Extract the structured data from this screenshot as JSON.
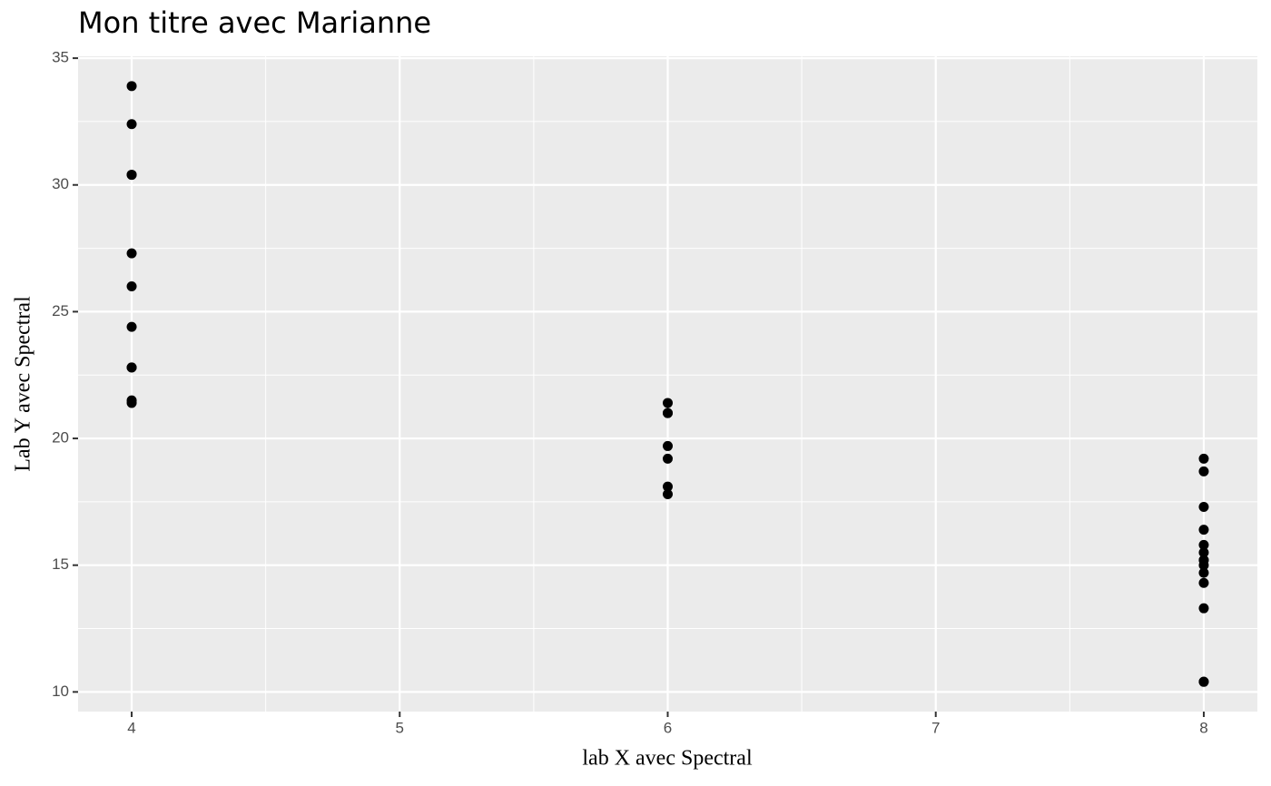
{
  "chart_data": {
    "type": "scatter",
    "title": "Mon titre avec Marianne",
    "x_label": "lab X avec Spectral",
    "y_label": "Lab Y avec Spectral",
    "x": [
      4,
      4,
      4,
      4,
      4,
      4,
      4,
      4,
      4,
      4,
      4,
      6,
      6,
      6,
      6,
      6,
      6,
      6,
      8,
      8,
      8,
      8,
      8,
      8,
      8,
      8,
      8,
      8,
      8,
      8,
      8,
      8
    ],
    "values": [
      22.8,
      24.4,
      22.8,
      32.4,
      30.4,
      33.9,
      21.5,
      27.3,
      26.0,
      30.4,
      21.4,
      21.0,
      21.0,
      21.4,
      18.1,
      19.2,
      17.8,
      19.7,
      18.7,
      14.3,
      16.4,
      17.3,
      15.2,
      10.4,
      10.4,
      14.7,
      15.5,
      15.2,
      13.3,
      19.2,
      15.8,
      15.0
    ],
    "color": "#000000",
    "xlim": [
      3.8,
      8.2
    ],
    "xticks": [
      4,
      5,
      6,
      7,
      8
    ],
    "ylim": [
      9.225,
      35.075
    ],
    "yticks": [
      10,
      15,
      20,
      25,
      30,
      35
    ],
    "grid": true
  }
}
